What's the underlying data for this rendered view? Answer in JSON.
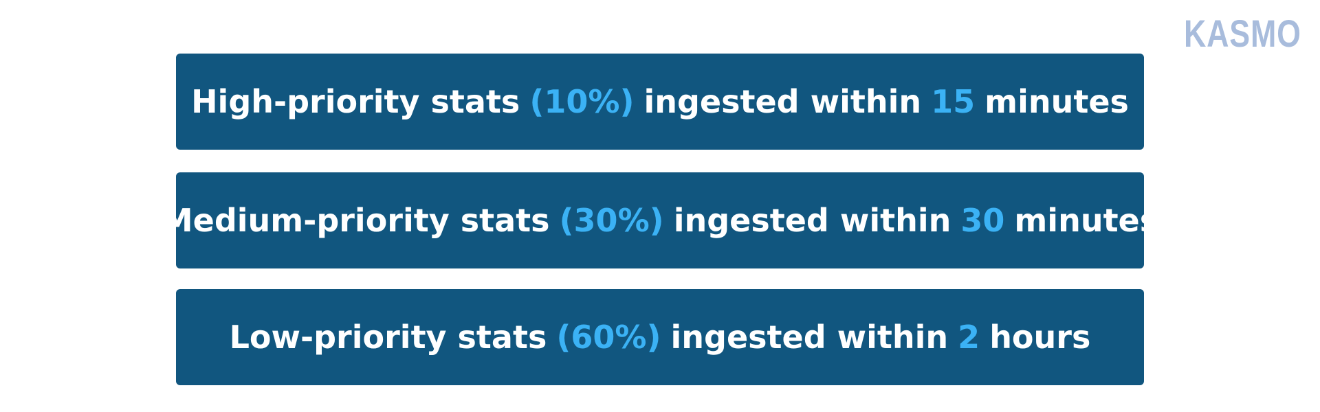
{
  "logo": "KASMO",
  "rows": [
    {
      "label": "High-priority stats",
      "share": "(10%)",
      "middle": "ingested within",
      "amount": "15",
      "unit": "minutes"
    },
    {
      "label": "Medium-priority stats",
      "share": "(30%)",
      "middle": "ingested within",
      "amount": "30",
      "unit": "minutes"
    },
    {
      "label": "Low-priority stats",
      "share": "(60%)",
      "middle": "ingested within",
      "amount": "2",
      "unit": "hours"
    }
  ]
}
